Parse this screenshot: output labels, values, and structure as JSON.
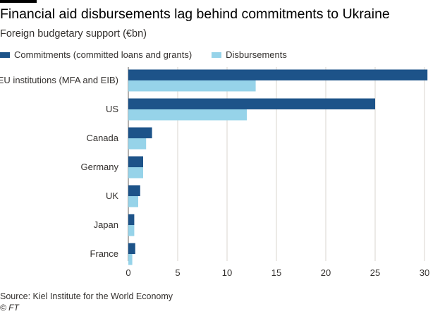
{
  "title": "Financial aid disbursements lag behind commitments to Ukraine",
  "subtitle": "Foreign budgetary support (€bn)",
  "source": "Source: Kiel Institute for the World Economy",
  "copyright": "© FT",
  "colors": {
    "commitments": "#1d5389",
    "disbursements": "#96d3e9",
    "grid": "#d9d4cf",
    "text": "#33302e"
  },
  "chart_data": {
    "type": "bar",
    "orientation": "horizontal",
    "categories": [
      "EU institutions (MFA and EIB)",
      "US",
      "Canada",
      "Germany",
      "UK",
      "Japan",
      "France"
    ],
    "series": [
      {
        "name": "Commitments (committed loans and grants)",
        "values": [
          30.3,
          25.0,
          2.4,
          1.5,
          1.2,
          0.6,
          0.7
        ]
      },
      {
        "name": "Disbursements",
        "values": [
          12.9,
          12.0,
          1.8,
          1.5,
          1.0,
          0.6,
          0.4
        ]
      }
    ],
    "xlim": [
      0,
      30.5
    ],
    "xticks": [
      0,
      5,
      10,
      15,
      20,
      25,
      30
    ],
    "grid": "vertical",
    "legend": "top-left"
  }
}
